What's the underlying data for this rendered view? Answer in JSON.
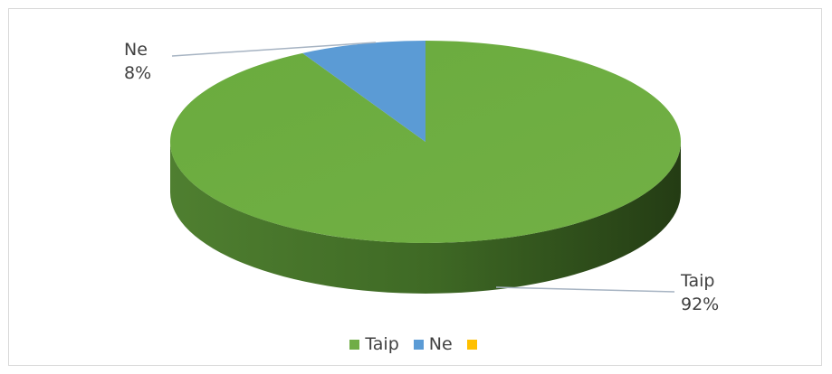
{
  "chart_data": {
    "type": "pie",
    "title": "",
    "categories": [
      "Taip",
      "Ne",
      ""
    ],
    "values": [
      92,
      8,
      0
    ],
    "percent_labels": [
      "92%",
      "8%"
    ],
    "colors": [
      "#70ad47",
      "#5b9bd5",
      "#ffc000"
    ],
    "legend_position": "bottom",
    "three_d": true
  }
}
